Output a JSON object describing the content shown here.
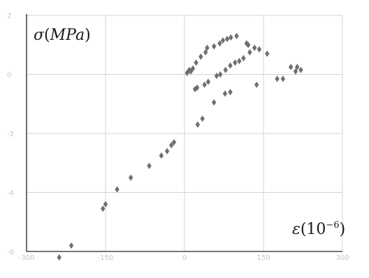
{
  "chart_data": {
    "type": "scatter",
    "title": "",
    "xlabel": "ε(10⁻⁶)",
    "ylabel": "σ(MPa)",
    "ylabel_parts": {
      "symbol": "σ",
      "open": "(",
      "unit": "MPa",
      "close": ")"
    },
    "xlabel_parts": {
      "symbol": "ε",
      "open": "(10",
      "exp": "−6",
      "close": ")"
    },
    "xlim": [
      -300,
      300
    ],
    "ylim": [
      -6,
      2
    ],
    "x_ticks": [
      -300,
      -150,
      0,
      150,
      300
    ],
    "x_tick_labels": [
      "-300",
      "-150",
      "0",
      "150",
      "300"
    ],
    "y_ticks": [
      -6,
      -4,
      -2,
      0,
      2
    ],
    "y_tick_labels": [
      "-6",
      "-4",
      "-2",
      "0",
      "2"
    ],
    "grid": true,
    "marker": "diamond",
    "color": "#6f6f6f",
    "grid_color": "#d3d3d3",
    "axis_color": "#4a4a4a",
    "series": [
      {
        "points": [
          [
            -238,
            -6.2
          ],
          [
            -215,
            -5.8
          ],
          [
            -155,
            -4.55
          ],
          [
            -150,
            -4.4
          ],
          [
            -128,
            -3.9
          ],
          [
            -102,
            -3.5
          ],
          [
            -67,
            -3.1
          ],
          [
            -44,
            -2.75
          ],
          [
            -33,
            -2.6
          ],
          [
            -25,
            -2.4
          ],
          [
            -20,
            -2.3
          ],
          [
            5,
            0.05
          ],
          [
            9,
            0.15
          ],
          [
            12,
            0.1
          ],
          [
            16,
            0.2
          ],
          [
            22,
            0.4
          ],
          [
            31,
            0.6
          ],
          [
            40,
            0.75
          ],
          [
            43,
            0.9
          ],
          [
            56,
            0.95
          ],
          [
            67,
            1.05
          ],
          [
            73,
            1.15
          ],
          [
            81,
            1.2
          ],
          [
            88,
            1.25
          ],
          [
            99,
            1.3
          ],
          [
            118,
            1.05
          ],
          [
            121,
            1.0
          ],
          [
            133,
            0.9
          ],
          [
            142,
            0.85
          ],
          [
            157,
            0.7
          ],
          [
            20,
            -0.5
          ],
          [
            24,
            -0.45
          ],
          [
            38,
            -0.35
          ],
          [
            45,
            -0.25
          ],
          [
            61,
            -0.05
          ],
          [
            68,
            0.0
          ],
          [
            78,
            0.15
          ],
          [
            87,
            0.3
          ],
          [
            96,
            0.4
          ],
          [
            104,
            0.45
          ],
          [
            112,
            0.55
          ],
          [
            124,
            0.75
          ],
          [
            137,
            -0.35
          ],
          [
            176,
            -0.15
          ],
          [
            187,
            -0.15
          ],
          [
            202,
            0.25
          ],
          [
            211,
            0.1
          ],
          [
            214,
            0.25
          ],
          [
            221,
            0.15
          ],
          [
            25,
            -1.7
          ],
          [
            34,
            -1.5
          ],
          [
            56,
            -0.95
          ],
          [
            77,
            -0.65
          ],
          [
            87,
            -0.6
          ]
        ]
      }
    ]
  }
}
